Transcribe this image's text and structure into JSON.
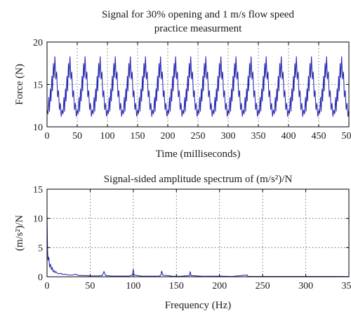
{
  "chart_data": [
    {
      "type": "line",
      "title": "Signal for 30% opening and 1 m/s flow speed",
      "subtitle": "practice measurment",
      "xlabel": "Time (milliseconds)",
      "ylabel": "Force (N)",
      "xlim": [
        0,
        500
      ],
      "ylim": [
        10,
        20
      ],
      "xticks": [
        "0",
        "50",
        "100",
        "150",
        "200",
        "250",
        "300",
        "350",
        "400",
        "450",
        "500"
      ],
      "yticks": [
        "10",
        "15",
        "20"
      ],
      "grid": true,
      "line_color": "#2b2bb0",
      "series": [
        {
          "period_ms": 25,
          "cycle_shape": [
            [
              0,
              12.0
            ],
            [
              1.5,
              11.5
            ],
            [
              3,
              13.5
            ],
            [
              4,
              11.8
            ],
            [
              5.5,
              14.5
            ],
            [
              6.5,
              13.0
            ],
            [
              8,
              16.0
            ],
            [
              9,
              14.2
            ],
            [
              10.5,
              17.5
            ],
            [
              11.5,
              15.8
            ],
            [
              13,
              18.3
            ],
            [
              14.5,
              15.6
            ],
            [
              16,
              16.5
            ],
            [
              17.5,
              13.5
            ],
            [
              19,
              14.3
            ],
            [
              20.5,
              12.0
            ],
            [
              22,
              12.8
            ],
            [
              23.5,
              11.2
            ],
            [
              25,
              12.0
            ]
          ]
        }
      ]
    },
    {
      "type": "line",
      "title": "Signal-sided amplitude spectrum of (m/s²)/N",
      "xlabel": "Frequency (Hz)",
      "ylabel": "(m/s²)/N",
      "xlim": [
        0,
        350
      ],
      "ylim": [
        0,
        15
      ],
      "xticks": [
        "0",
        "50",
        "100",
        "150",
        "200",
        "250",
        "300",
        "350"
      ],
      "yticks": [
        "0",
        "5",
        "10",
        "15"
      ],
      "grid": true,
      "line_color": "#2b2bb0",
      "series": [
        {
          "points": [
            [
              0,
              10.5
            ],
            [
              0.6,
              4.5
            ],
            [
              1.2,
              2.8
            ],
            [
              2,
              3.4
            ],
            [
              3,
              1.6
            ],
            [
              4,
              2.2
            ],
            [
              5,
              1.2
            ],
            [
              6,
              1.6
            ],
            [
              7,
              0.9
            ],
            [
              8,
              1.1
            ],
            [
              9,
              0.7
            ],
            [
              10,
              0.9
            ],
            [
              12,
              0.6
            ],
            [
              14,
              0.5
            ],
            [
              16,
              0.6
            ],
            [
              18,
              0.4
            ],
            [
              20,
              0.45
            ],
            [
              23,
              0.35
            ],
            [
              26,
              0.3
            ],
            [
              30,
              0.3
            ],
            [
              33,
              0.45
            ],
            [
              36,
              0.25
            ],
            [
              40,
              0.2
            ],
            [
              45,
              0.2
            ],
            [
              50,
              0.15
            ],
            [
              55,
              0.15
            ],
            [
              60,
              0.15
            ],
            [
              64,
              0.2
            ],
            [
              66,
              0.9
            ],
            [
              68,
              0.2
            ],
            [
              75,
              0.12
            ],
            [
              85,
              0.12
            ],
            [
              95,
              0.12
            ],
            [
              99,
              0.3
            ],
            [
              100,
              1.3
            ],
            [
              101,
              0.3
            ],
            [
              110,
              0.1
            ],
            [
              120,
              0.1
            ],
            [
              130,
              0.1
            ],
            [
              132,
              0.3
            ],
            [
              133,
              1.0
            ],
            [
              134,
              0.3
            ],
            [
              145,
              0.1
            ],
            [
              155,
              0.08
            ],
            [
              165,
              0.2
            ],
            [
              166,
              0.9
            ],
            [
              167,
              0.2
            ],
            [
              180,
              0.08
            ],
            [
              200,
              0.1
            ],
            [
              215,
              0.06
            ],
            [
              232,
              0.3
            ],
            [
              233,
              0.05
            ],
            [
              260,
              0.05
            ],
            [
              300,
              0.05
            ],
            [
              330,
              0.05
            ],
            [
              350,
              0.04
            ]
          ]
        }
      ]
    }
  ]
}
